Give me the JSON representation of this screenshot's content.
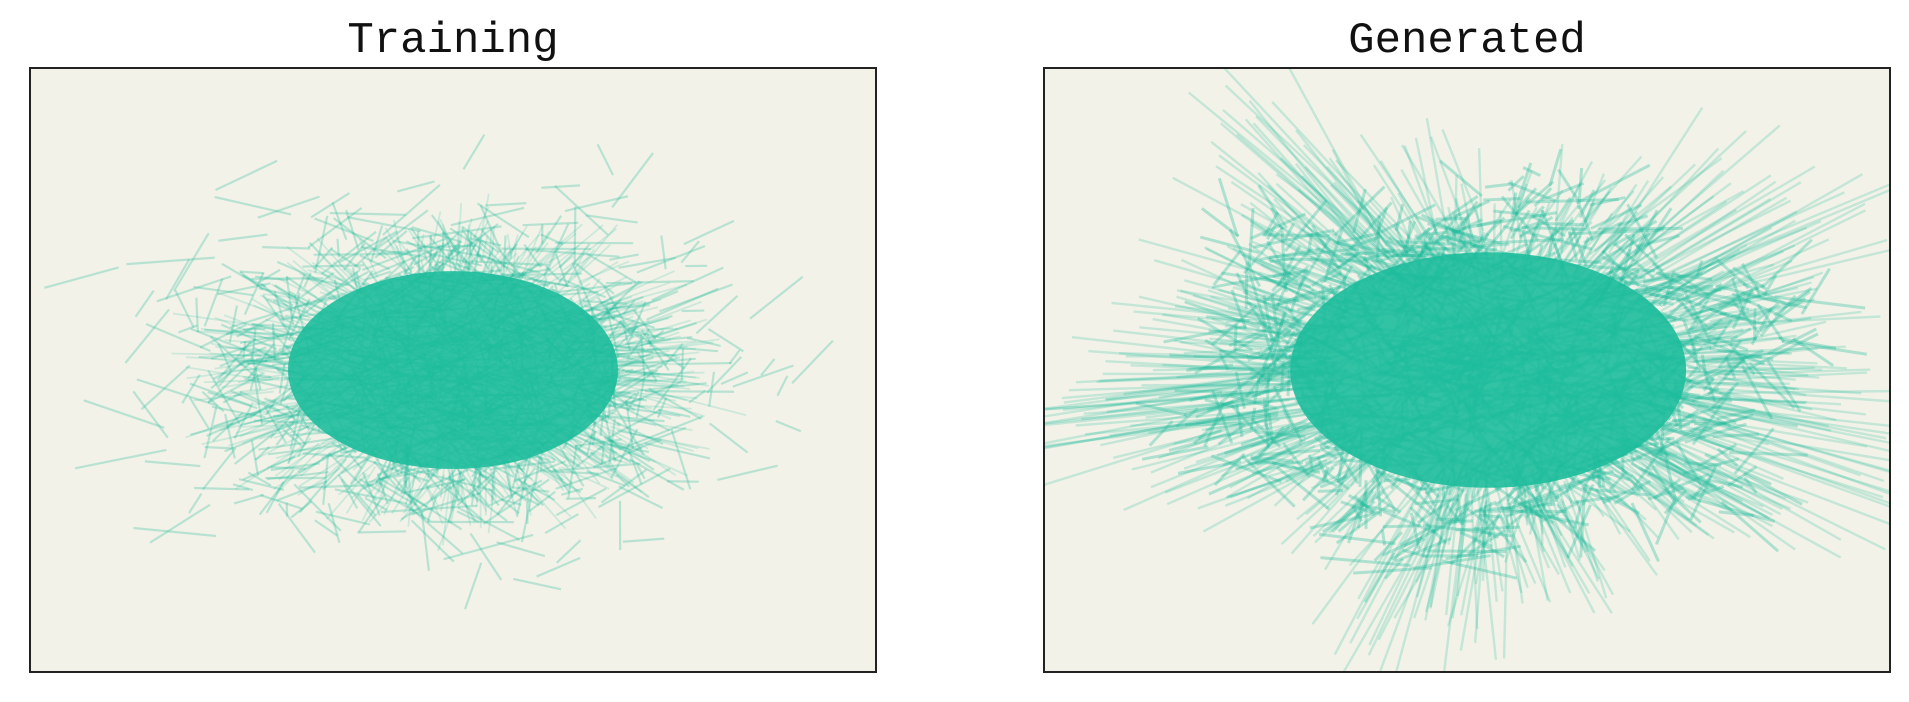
{
  "colors": {
    "line": "#1dbc9c",
    "plot_background": "#f3f2e8",
    "frame": "#222222",
    "figure_background": "#ffffff"
  },
  "chart_data": [
    {
      "type": "line",
      "title": "Training",
      "xlabel": "",
      "ylabel": "",
      "grid": false,
      "ticks_visible": false,
      "legend": "none",
      "xlim": [
        -1,
        1
      ],
      "ylim": [
        -1,
        1
      ],
      "line_alpha": 0.18,
      "cloud": {
        "shape": "ellipse",
        "center": [
          0.0,
          0.0
        ],
        "dense_core_radius": [
          0.5,
          0.42
        ],
        "outer_extent": [
          0.95,
          0.95
        ]
      }
    },
    {
      "type": "line",
      "title": "Generated",
      "xlabel": "",
      "ylabel": "",
      "grid": false,
      "ticks_visible": false,
      "legend": "none",
      "xlim": [
        -1,
        1
      ],
      "ylim": [
        -1,
        1
      ],
      "line_alpha": 0.22,
      "cloud": {
        "shape": "irregular-star",
        "center": [
          0.05,
          0.0
        ],
        "dense_core_radius": [
          0.6,
          0.5
        ],
        "outer_extent": [
          0.95,
          0.95
        ]
      }
    }
  ]
}
